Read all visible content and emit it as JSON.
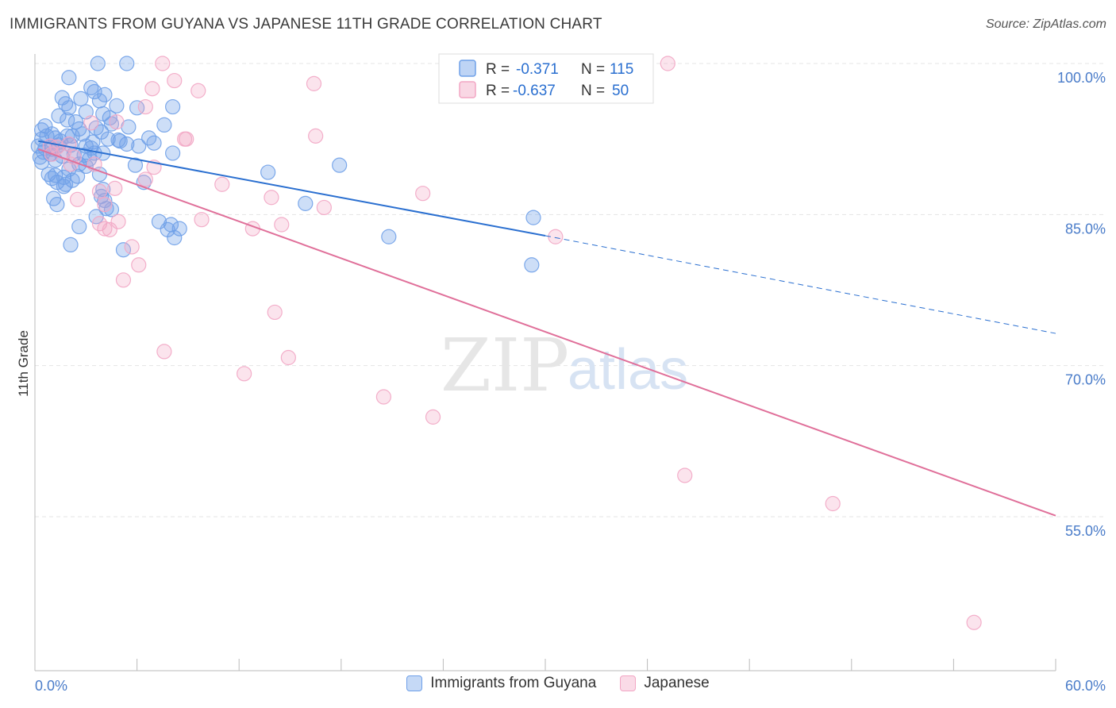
{
  "title": "IMMIGRANTS FROM GUYANA VS JAPANESE 11TH GRADE CORRELATION CHART",
  "source": "Source: ZipAtlas.com",
  "watermark": {
    "zip": "ZIP",
    "atlas": "atlas"
  },
  "chart_data": {
    "type": "scatter",
    "xlabel": "",
    "ylabel": "11th Grade",
    "xlim": [
      0,
      60
    ],
    "ylim": [
      42,
      102
    ],
    "x_tick_labels": [
      "0.0%",
      "60.0%"
    ],
    "y_ticks": [
      {
        "value": 100,
        "label": "100.0%"
      },
      {
        "value": 85,
        "label": "85.0%"
      },
      {
        "value": 70,
        "label": "70.0%"
      },
      {
        "value": 55,
        "label": "55.0%"
      }
    ],
    "grid": true,
    "legend_position": "top-center",
    "series": [
      {
        "name": "Immigrants from Guyana",
        "color": "#6fa0e8",
        "line_color": "#2a6fd0",
        "R": "-0.371",
        "N": "115",
        "trend": {
          "x_start": 0.2,
          "y_start": 92.3,
          "x_solid_end": 30,
          "y_solid_end": 82.9,
          "x_dashed_end": 60,
          "y_dashed_end": 73.2
        },
        "points": [
          [
            3.7,
            100
          ],
          [
            5.4,
            100
          ],
          [
            2.0,
            98.6
          ],
          [
            3.3,
            97.6
          ],
          [
            3.5,
            97.2
          ],
          [
            4.1,
            96.9
          ],
          [
            1.6,
            96.6
          ],
          [
            2.7,
            96.5
          ],
          [
            3.8,
            96.3
          ],
          [
            1.8,
            96.0
          ],
          [
            2.0,
            95.6
          ],
          [
            4.8,
            95.8
          ],
          [
            6.0,
            95.6
          ],
          [
            8.1,
            95.7
          ],
          [
            3.0,
            95.2
          ],
          [
            4.0,
            95.0
          ],
          [
            1.4,
            94.8
          ],
          [
            2.4,
            94.2
          ],
          [
            4.4,
            94.6
          ],
          [
            5.5,
            93.7
          ],
          [
            7.6,
            93.9
          ],
          [
            0.6,
            93.8
          ],
          [
            3.6,
            93.6
          ],
          [
            3.9,
            93.2
          ],
          [
            1.0,
            93.0
          ],
          [
            1.9,
            92.8
          ],
          [
            2.2,
            92.8
          ],
          [
            4.3,
            92.5
          ],
          [
            4.9,
            92.4
          ],
          [
            5.0,
            92.3
          ],
          [
            7.0,
            92.1
          ],
          [
            0.4,
            92.5
          ],
          [
            1.0,
            91.5
          ],
          [
            1.5,
            92.3
          ],
          [
            2.1,
            91.9
          ],
          [
            3.0,
            91.8
          ],
          [
            3.3,
            91.6
          ],
          [
            3.5,
            91.1
          ],
          [
            6.1,
            91.8
          ],
          [
            0.5,
            91.2
          ],
          [
            0.9,
            91.0
          ],
          [
            2.3,
            91.0
          ],
          [
            2.9,
            90.9
          ],
          [
            4.0,
            91.1
          ],
          [
            8.1,
            91.1
          ],
          [
            0.3,
            90.7
          ],
          [
            1.2,
            90.4
          ],
          [
            2.6,
            90.0
          ],
          [
            3.0,
            89.8
          ],
          [
            5.9,
            89.9
          ],
          [
            17.9,
            89.9
          ],
          [
            13.7,
            89.2
          ],
          [
            1.2,
            88.9
          ],
          [
            1.7,
            88.7
          ],
          [
            2.2,
            88.4
          ],
          [
            3.8,
            89.0
          ],
          [
            1.0,
            88.6
          ],
          [
            1.3,
            88.2
          ],
          [
            6.4,
            88.2
          ],
          [
            1.8,
            88.0
          ],
          [
            4.0,
            87.5
          ],
          [
            1.1,
            86.6
          ],
          [
            4.1,
            86.4
          ],
          [
            1.3,
            86.0
          ],
          [
            4.5,
            85.5
          ],
          [
            15.9,
            86.1
          ],
          [
            3.6,
            84.8
          ],
          [
            7.3,
            84.3
          ],
          [
            8.0,
            84.0
          ],
          [
            7.8,
            83.5
          ],
          [
            2.6,
            83.8
          ],
          [
            8.5,
            83.6
          ],
          [
            8.2,
            82.7
          ],
          [
            2.1,
            82.0
          ],
          [
            5.2,
            81.5
          ],
          [
            29.3,
            84.7
          ],
          [
            20.8,
            82.8
          ],
          [
            29.2,
            80.0
          ],
          [
            0.4,
            93.4
          ],
          [
            0.7,
            92.8
          ],
          [
            1.6,
            90.8
          ],
          [
            2.0,
            89.5
          ],
          [
            2.8,
            93.0
          ],
          [
            3.2,
            90.5
          ],
          [
            4.5,
            94.0
          ],
          [
            0.6,
            91.6
          ],
          [
            1.2,
            92.6
          ],
          [
            0.8,
            89.0
          ],
          [
            2.5,
            88.8
          ],
          [
            5.4,
            92.0
          ],
          [
            6.7,
            92.6
          ],
          [
            3.4,
            92.2
          ],
          [
            1.9,
            94.4
          ],
          [
            2.6,
            93.5
          ],
          [
            0.2,
            91.8
          ],
          [
            0.4,
            90.2
          ],
          [
            1.4,
            91.9
          ],
          [
            1.7,
            87.8
          ],
          [
            3.9,
            86.8
          ],
          [
            4.2,
            85.6
          ]
        ]
      },
      {
        "name": "Japanese",
        "color": "#f2a6c4",
        "line_color": "#e0709a",
        "R": "-0.637",
        "N": "50",
        "trend": {
          "x_start": 0.2,
          "y_start": 91.5,
          "x_solid_end": 60,
          "y_solid_end": 55.1
        },
        "points": [
          [
            37.2,
            100
          ],
          [
            7.5,
            100
          ],
          [
            8.2,
            98.3
          ],
          [
            16.4,
            98.0
          ],
          [
            6.9,
            97.5
          ],
          [
            9.6,
            97.3
          ],
          [
            6.5,
            95.7
          ],
          [
            3.3,
            94.1
          ],
          [
            4.8,
            94.2
          ],
          [
            8.9,
            92.5
          ],
          [
            8.8,
            92.5
          ],
          [
            16.5,
            92.8
          ],
          [
            0.9,
            91.8
          ],
          [
            1.3,
            91.7
          ],
          [
            1.7,
            91.2
          ],
          [
            2.3,
            90.7
          ],
          [
            3.5,
            90.0
          ],
          [
            2.1,
            90.0
          ],
          [
            7.0,
            89.7
          ],
          [
            6.5,
            88.5
          ],
          [
            11.0,
            88.0
          ],
          [
            4.7,
            87.6
          ],
          [
            3.8,
            87.3
          ],
          [
            22.8,
            87.1
          ],
          [
            13.9,
            86.7
          ],
          [
            17.0,
            85.7
          ],
          [
            2.5,
            86.5
          ],
          [
            4.1,
            86.0
          ],
          [
            9.8,
            84.5
          ],
          [
            4.9,
            84.3
          ],
          [
            3.8,
            84.1
          ],
          [
            14.5,
            84.0
          ],
          [
            12.8,
            83.6
          ],
          [
            4.1,
            83.6
          ],
          [
            4.4,
            83.5
          ],
          [
            30.6,
            82.8
          ],
          [
            5.7,
            81.8
          ],
          [
            6.1,
            80.0
          ],
          [
            5.2,
            78.5
          ],
          [
            14.1,
            75.3
          ],
          [
            7.6,
            71.4
          ],
          [
            14.9,
            70.8
          ],
          [
            12.3,
            69.2
          ],
          [
            20.5,
            66.9
          ],
          [
            23.4,
            64.9
          ],
          [
            38.2,
            59.1
          ],
          [
            46.9,
            56.3
          ],
          [
            55.2,
            44.5
          ],
          [
            1.0,
            91.0
          ],
          [
            2.0,
            92.0
          ]
        ]
      }
    ]
  }
}
